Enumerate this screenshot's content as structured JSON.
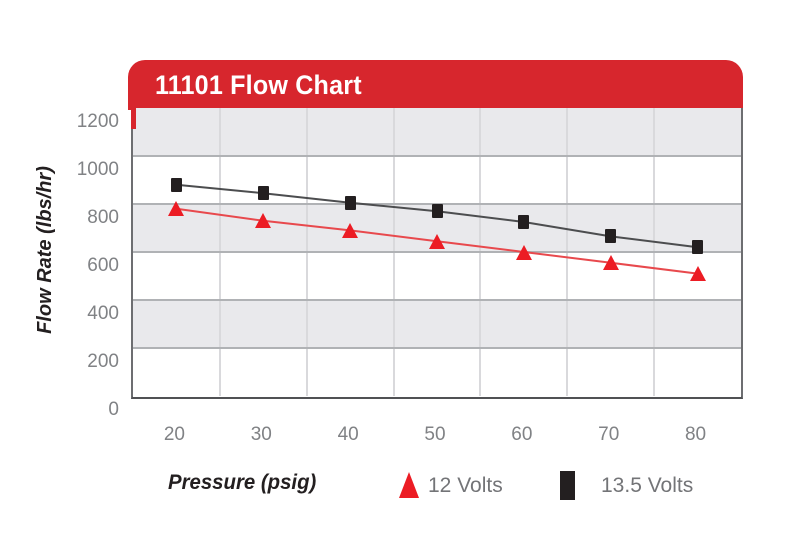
{
  "header": {
    "title": "11101 Flow Chart"
  },
  "colors": {
    "banner_red": "#d7262d",
    "marker_red": "#ec1c24",
    "line_red": "#e8494d",
    "marker_black": "#231f20",
    "line_black": "#4c4d4f",
    "band_gray": "#e9e9ec",
    "band_white": "#ffffff",
    "grid_h": "#b0b2b5",
    "grid_v": "#d9d9dc",
    "tick_gray": "#808285",
    "text_black": "#231f20"
  },
  "chart_data": {
    "type": "line",
    "title": "11101 Flow Chart",
    "xlabel": "Pressure (psig)",
    "ylabel": "Flow Rate (lbs/hr)",
    "x": [
      20,
      30,
      40,
      50,
      60,
      70,
      80
    ],
    "y_ticks": [
      1200,
      1000,
      800,
      600,
      400,
      200,
      0
    ],
    "ylim": [
      0,
      1200
    ],
    "grid": "horizontal-bands-with-vertical-separators",
    "legend_position": "bottom",
    "series": [
      {
        "name": "13.5 Volts",
        "marker": "square",
        "color": "#231f20",
        "values": [
          880,
          845,
          805,
          770,
          725,
          665,
          620
        ]
      },
      {
        "name": "12 Volts",
        "marker": "triangle",
        "color": "#ec1c24",
        "values": [
          780,
          730,
          690,
          645,
          600,
          555,
          510
        ]
      }
    ]
  }
}
